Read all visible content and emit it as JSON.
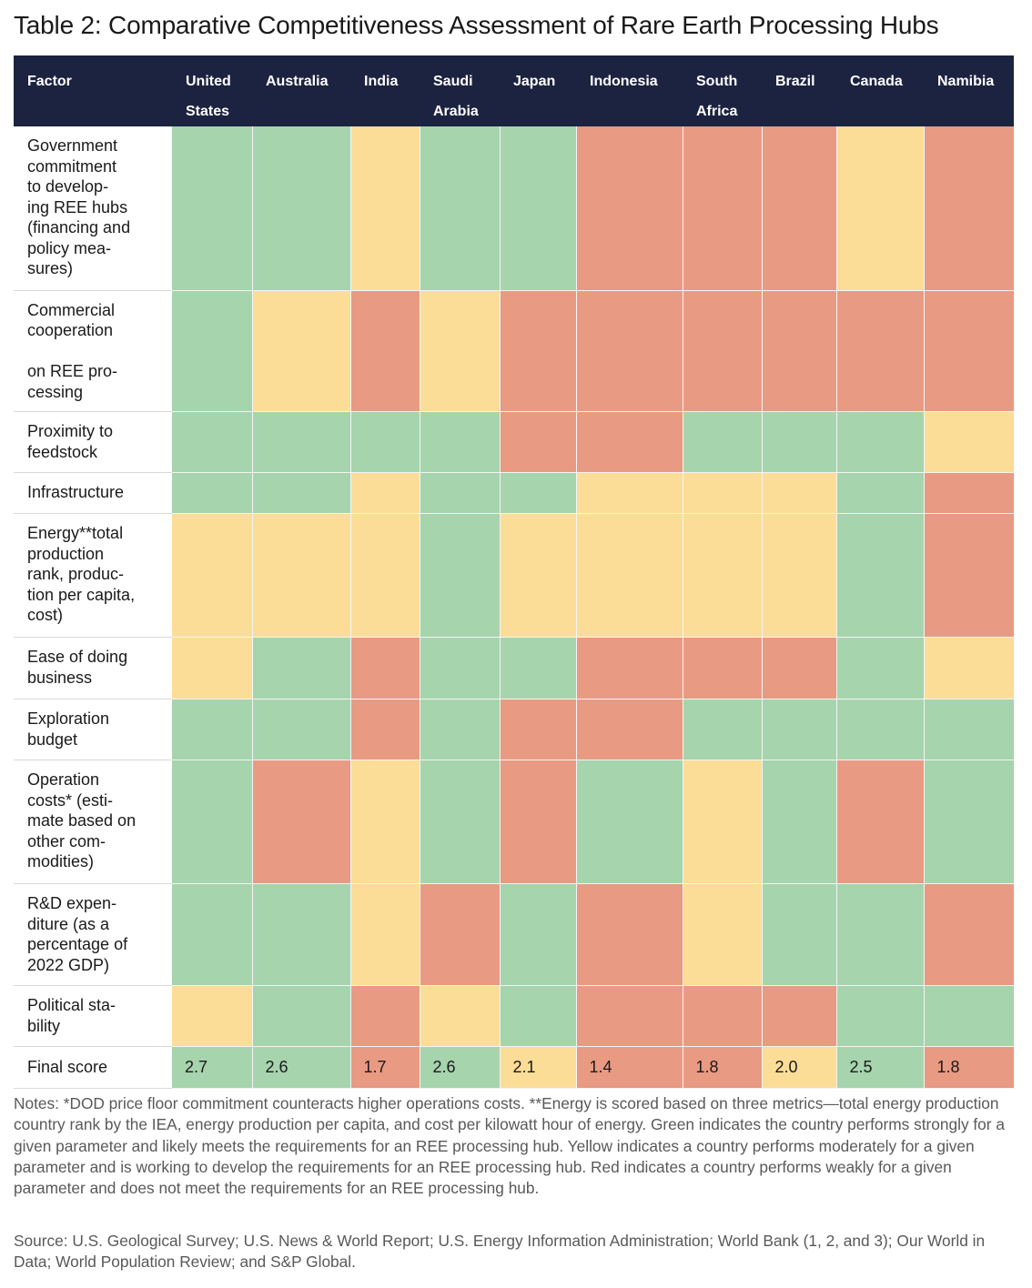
{
  "title": "Table 2: Comparative Competitiveness Assessment of Rare Earth Processing Hubs",
  "colors": {
    "G": "#a6d4ad",
    "Y": "#fcdd98",
    "R": "#e99a83",
    "header": "#1c2340"
  },
  "legend_key": {
    "G": "strong",
    "Y": "moderate",
    "R": "weak"
  },
  "columns": [
    "Factor",
    "United\nStates",
    "Australia",
    "India",
    "Saudi\nArabia",
    "Japan",
    "Indonesia",
    "South\nAfrica",
    "Brazil",
    "Canada",
    "Namibia"
  ],
  "rows": [
    {
      "factor": "Government\ncommitment\nto develop-\ning REE hubs\n(financing and\npolicy mea-\nsures)",
      "ratings": [
        "G",
        "G",
        "Y",
        "G",
        "G",
        "R",
        "R",
        "R",
        "Y",
        "R"
      ]
    },
    {
      "factor": "Commercial\ncooperation\n\non REE pro-\ncessing",
      "ratings": [
        "G",
        "Y",
        "R",
        "Y",
        "R",
        "R",
        "R",
        "R",
        "R",
        "R"
      ]
    },
    {
      "factor": "Proximity to\nfeedstock",
      "ratings": [
        "G",
        "G",
        "G",
        "G",
        "R",
        "R",
        "G",
        "G",
        "G",
        "Y"
      ]
    },
    {
      "factor": "Infrastructure",
      "ratings": [
        "G",
        "G",
        "Y",
        "G",
        "G",
        "Y",
        "Y",
        "Y",
        "G",
        "R"
      ]
    },
    {
      "factor": "Energy**total\nproduction\nrank, produc-\ntion per capita,\ncost)",
      "ratings": [
        "Y",
        "Y",
        "Y",
        "G",
        "Y",
        "Y",
        "Y",
        "Y",
        "G",
        "R"
      ]
    },
    {
      "factor": "Ease of doing\nbusiness",
      "ratings": [
        "Y",
        "G",
        "R",
        "G",
        "G",
        "R",
        "R",
        "R",
        "G",
        "Y"
      ]
    },
    {
      "factor": "Exploration\nbudget",
      "ratings": [
        "G",
        "G",
        "R",
        "G",
        "R",
        "R",
        "G",
        "G",
        "G",
        "G"
      ]
    },
    {
      "factor": "Operation\ncosts* (esti-\nmate based on\nother com-\nmodities)",
      "ratings": [
        "G",
        "R",
        "Y",
        "G",
        "R",
        "G",
        "Y",
        "G",
        "R",
        "G"
      ]
    },
    {
      "factor": "R&D expen-\nditure (as a\npercentage of\n2022 GDP)",
      "ratings": [
        "G",
        "G",
        "Y",
        "R",
        "G",
        "R",
        "Y",
        "G",
        "G",
        "R"
      ]
    },
    {
      "factor": "Political sta-\nbility",
      "ratings": [
        "Y",
        "G",
        "R",
        "Y",
        "G",
        "R",
        "R",
        "R",
        "G",
        "G"
      ]
    }
  ],
  "final": {
    "label": "Final score",
    "scores": [
      "2.7",
      "2.6",
      "1.7",
      "2.6",
      "2.1",
      "1.4",
      "1.8",
      "2.0",
      "2.5",
      "1.8"
    ],
    "ratings": [
      "G",
      "G",
      "R",
      "G",
      "Y",
      "R",
      "R",
      "Y",
      "G",
      "R"
    ]
  },
  "notes": "Notes: *DOD price floor commitment counteracts higher operations costs. **Energy is scored based on three metrics—total energy production country rank by the IEA, energy production per capita, and cost per kilowatt hour of energy. Green indicates the country performs strongly for a given parameter and likely meets the requirements for an REE processing hub. Yellow indicates a country performs moderately for a given parameter and is working to develop the requirements for an REE processing hub. Red indicates a country performs weakly for a given parameter and does not meet the requirements for an REE processing hub.",
  "source": "Source: U.S. Geological Survey; U.S. News & World Report; U.S. Energy Information Administration; World Bank (1, 2, and 3); Our World in Data; World Population Review; and S&P Global."
}
